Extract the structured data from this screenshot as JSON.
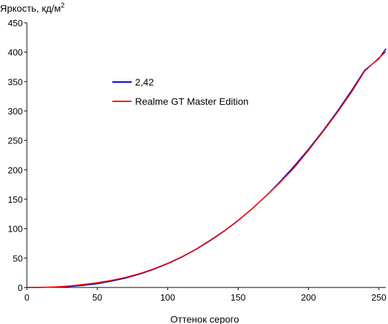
{
  "chart_data": {
    "type": "line",
    "title": "",
    "ylabel": "Яркость, кд/м",
    "ylabel_sup": "2",
    "xlabel": "Оттенок серого",
    "xlim": [
      0,
      255
    ],
    "ylim": [
      0,
      450
    ],
    "xticks": [
      0,
      50,
      100,
      150,
      200,
      250
    ],
    "yticks": [
      0,
      50,
      100,
      150,
      200,
      250,
      300,
      350,
      400,
      450
    ],
    "grid": false,
    "legend_position": "upper-left",
    "series": [
      {
        "name": "2,42",
        "color": "#0000cc",
        "x": [
          0,
          10,
          20,
          30,
          40,
          50,
          60,
          70,
          80,
          90,
          100,
          110,
          120,
          130,
          140,
          150,
          160,
          170,
          180,
          190,
          200,
          210,
          220,
          230,
          240,
          250,
          255
        ],
        "y": [
          0,
          0.1,
          0.6,
          1.6,
          3.6,
          6.4,
          10.7,
          15.8,
          22.6,
          30.8,
          40.5,
          51.5,
          64.5,
          79.3,
          95.5,
          113.6,
          133.8,
          155.9,
          180.4,
          206.6,
          235.0,
          265.4,
          297.9,
          332.6,
          369.5,
          388.7,
          406
        ]
      },
      {
        "name": "Realme GT Master Edition",
        "color": "#ff0000",
        "x": [
          0,
          10,
          20,
          25,
          30,
          40,
          50,
          60,
          70,
          80,
          90,
          100,
          110,
          120,
          130,
          140,
          150,
          160,
          170,
          180,
          190,
          200,
          210,
          220,
          230,
          240,
          250,
          255
        ],
        "y": [
          0,
          0.2,
          1.0,
          1.5,
          2.5,
          5.0,
          8.0,
          12.0,
          17.0,
          23.5,
          31.5,
          41.0,
          52.0,
          65.0,
          80.0,
          96.0,
          114.0,
          134.0,
          156.0,
          179.0,
          204.0,
          233.0,
          264.0,
          296.0,
          330.0,
          368.0,
          390.0,
          401.0
        ]
      }
    ]
  }
}
